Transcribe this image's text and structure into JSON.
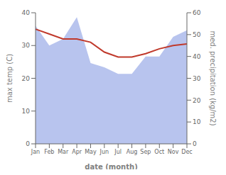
{
  "chart_data": {
    "type": "line",
    "categories": [
      "Jan",
      "Feb",
      "Mar",
      "Apr",
      "May",
      "Jun",
      "Jul",
      "Aug",
      "Sep",
      "Oct",
      "Nov",
      "Dec"
    ],
    "xlabel": "date (month)",
    "ylabel": "max temp (C)",
    "y2label": "med. precipitation (kg/m2)",
    "ylim": [
      0,
      40
    ],
    "yticks": [
      0,
      10,
      20,
      30,
      40
    ],
    "y2lim": [
      0,
      60
    ],
    "y2ticks": [
      0,
      10,
      20,
      30,
      40,
      50,
      60
    ],
    "grid": false,
    "series": [
      {
        "type": "area",
        "axis": "y2",
        "color": "#b8c4ee",
        "values": [
          54,
          45,
          48,
          58,
          37,
          35,
          32,
          32,
          40,
          40,
          49,
          52
        ]
      },
      {
        "type": "line",
        "color": "#c0392b",
        "values": [
          35,
          33.5,
          32,
          32,
          31,
          28,
          26.5,
          26.5,
          27.5,
          29,
          30,
          30.5
        ]
      }
    ]
  }
}
